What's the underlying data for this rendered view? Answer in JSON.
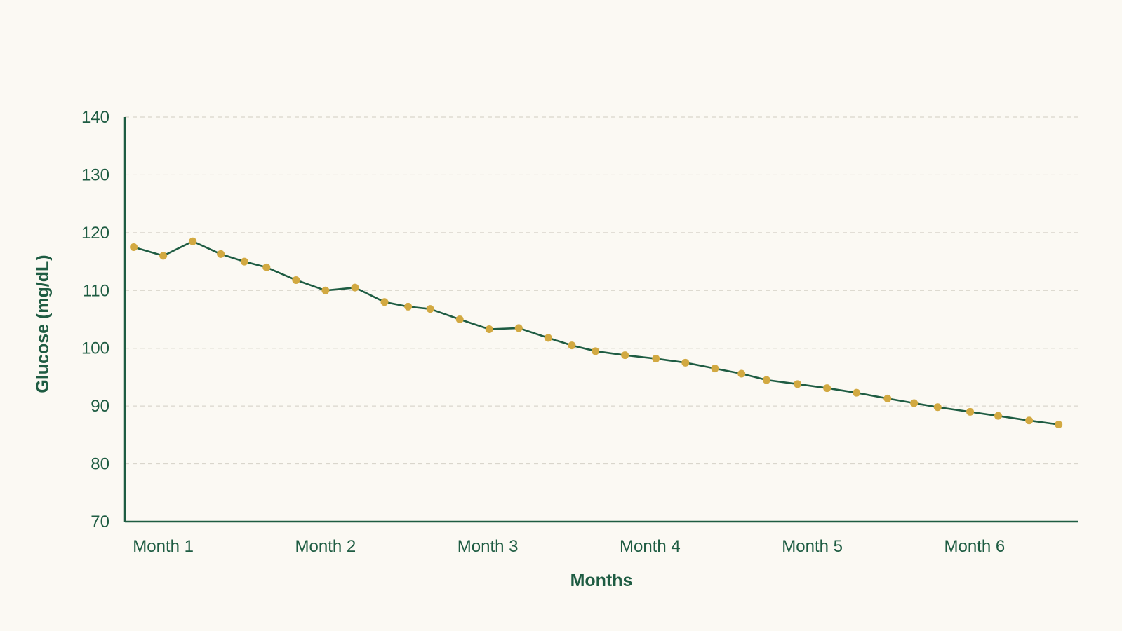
{
  "colors": {
    "background": "#fbf9f3",
    "axis": "#1e5c42",
    "text": "#1e5c42",
    "line": "#1e5c42",
    "marker": "#d2a941",
    "grid": "#d9d6cc"
  },
  "chart_data": {
    "type": "line",
    "title": "",
    "xlabel": "Months",
    "ylabel": "Glucose (mg/dL)",
    "ylim": [
      70,
      140
    ],
    "yticks": [
      70,
      80,
      90,
      100,
      110,
      120,
      130,
      140
    ],
    "ytick_labels": [
      "70",
      "80",
      "90",
      "100",
      "110",
      "120",
      "130",
      "140"
    ],
    "xlim": [
      0.7,
      33.0
    ],
    "xticks": [
      {
        "x": 2,
        "label": "Month 1"
      },
      {
        "x": 7.5,
        "label": "Month 2"
      },
      {
        "x": 13,
        "label": "Month 3"
      },
      {
        "x": 18.5,
        "label": "Month 4"
      },
      {
        "x": 24,
        "label": "Month 5"
      },
      {
        "x": 29.5,
        "label": "Month 6"
      }
    ],
    "grid": "horizontal-dashed",
    "legend": "none",
    "series": [
      {
        "x": [
          1.0,
          2.0,
          3.0,
          3.95,
          4.75,
          5.5,
          6.5,
          7.5,
          8.5,
          9.5,
          10.3,
          11.05,
          12.05,
          13.05,
          14.05,
          15.05,
          15.85,
          16.65,
          17.65,
          18.7,
          19.7,
          20.7,
          21.6,
          22.45,
          23.5,
          24.5,
          25.5,
          26.55,
          27.45,
          28.25,
          29.35,
          30.3,
          31.35,
          32.35
        ],
        "y": [
          117.5,
          116.0,
          118.5,
          116.3,
          115.0,
          114.0,
          111.8,
          110.0,
          110.5,
          108.0,
          107.2,
          106.8,
          105.0,
          103.3,
          103.5,
          101.8,
          100.5,
          99.5,
          98.8,
          98.2,
          97.5,
          96.5,
          95.6,
          94.5,
          93.8,
          93.1,
          92.3,
          91.3,
          90.5,
          89.8,
          89.0,
          88.3,
          87.5,
          86.8
        ]
      }
    ]
  }
}
